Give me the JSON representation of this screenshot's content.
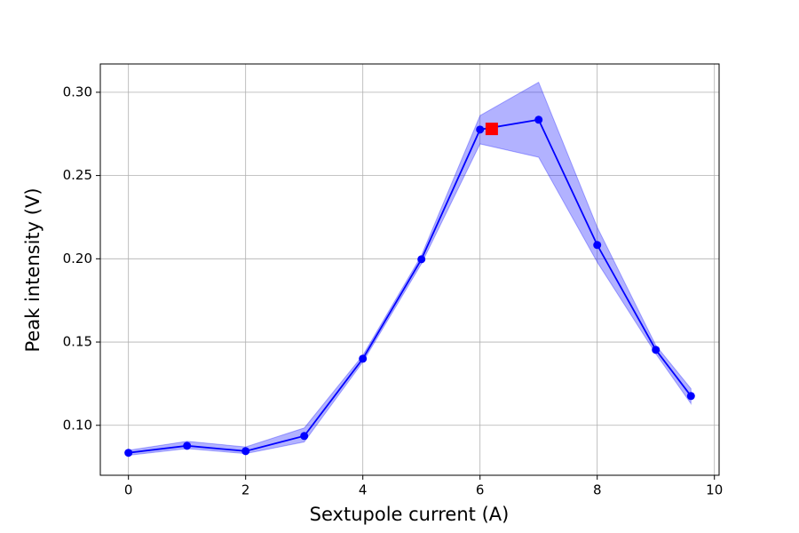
{
  "chart_data": {
    "type": "line",
    "x_label": "Sextupole current (A)",
    "y_label": "Peak intensity (V)",
    "x": [
      0,
      1,
      2,
      3,
      4,
      5,
      6,
      7,
      8,
      9,
      9.6
    ],
    "series": [
      {
        "color": "#0000ff",
        "band_color": "#0000ff",
        "values": [
          0.0835,
          0.0877,
          0.0845,
          0.0936,
          0.14,
          0.1997,
          0.2776,
          0.2835,
          0.2083,
          0.1453,
          0.1176
        ],
        "lower": [
          0.082,
          0.086,
          0.083,
          0.09,
          0.138,
          0.197,
          0.269,
          0.261,
          0.198,
          0.143,
          0.113
        ],
        "upper": [
          0.085,
          0.0904,
          0.087,
          0.0984,
          0.142,
          0.202,
          0.286,
          0.306,
          0.219,
          0.148,
          0.122
        ]
      }
    ],
    "highlight": {
      "x": 6.2,
      "y": 0.278,
      "color": "#ff0000"
    },
    "xlim": [
      -0.48,
      10.08
    ],
    "ylim": [
      0.07,
      0.317
    ],
    "xticks": [
      0,
      2,
      4,
      6,
      8,
      10
    ],
    "yticks": [
      {
        "value": 0.1,
        "label": "0.10"
      },
      0.15,
      {
        "value": 0.2,
        "label": "0.20"
      },
      0.25,
      {
        "value": 0.3,
        "label": "0.30"
      }
    ],
    "grid": true
  }
}
